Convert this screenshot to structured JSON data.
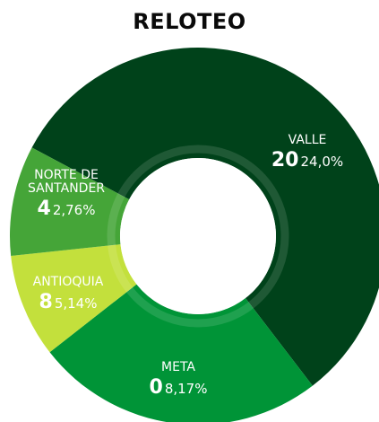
{
  "chart_data": {
    "type": "pie",
    "title": "RELOTEO",
    "slices": [
      {
        "region_lines": [
          "VALLE"
        ],
        "count": "20",
        "percent_label": "24,0%",
        "value": 24.0,
        "color": "#00421a"
      },
      {
        "region_lines": [
          "META"
        ],
        "count": "0",
        "percent_label": "8,17%",
        "value": 8.17,
        "color": "#009437"
      },
      {
        "region_lines": [
          "ANTIOQUIA"
        ],
        "count": "8",
        "percent_label": "5,14%",
        "value": 5.14,
        "color": "#c3e03c"
      },
      {
        "region_lines": [
          "NORTE DE",
          "SANTANDER"
        ],
        "count": "4",
        "percent_label": "2,76%",
        "value": 2.76,
        "color": "#45a538"
      }
    ]
  }
}
